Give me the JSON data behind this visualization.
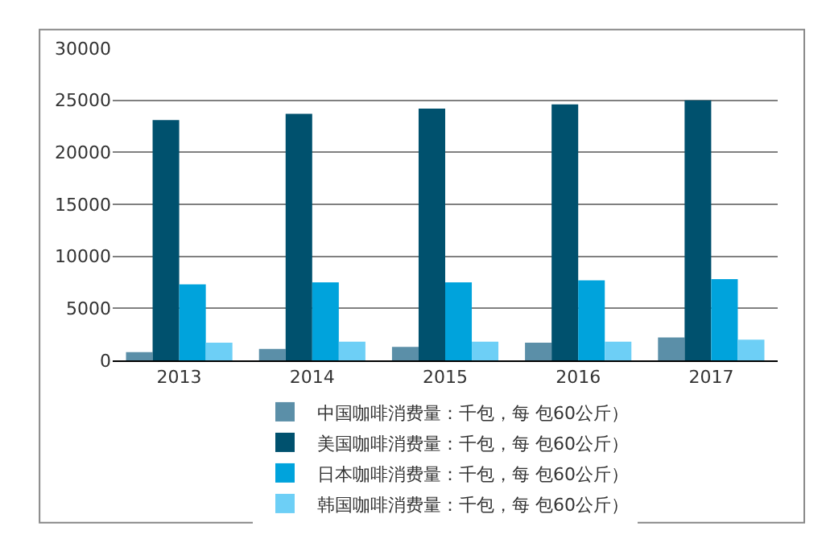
{
  "chart_data": {
    "type": "bar",
    "categories": [
      "2013",
      "2014",
      "2015",
      "2016",
      "2017"
    ],
    "series": [
      {
        "name": "中国咖啡消费量：千包，每 包60公斤）",
        "color": "#5b8fa8",
        "values": [
          800,
          1100,
          1300,
          1700,
          2200
        ]
      },
      {
        "name": "美国咖啡消费量：千包，每 包60公斤）",
        "color": "#00516e",
        "values": [
          23100,
          23700,
          24200,
          24600,
          25000
        ]
      },
      {
        "name": "日本咖啡消费量：千包，每 包60公斤）",
        "color": "#00a3dc",
        "values": [
          7300,
          7500,
          7500,
          7700,
          7800
        ]
      },
      {
        "name": "韩国咖啡消费量：千包，每 包60公斤）",
        "color": "#6dcff6",
        "values": [
          1700,
          1800,
          1800,
          1800,
          2000
        ]
      }
    ],
    "ylim": [
      0,
      30000
    ],
    "yticks": [
      0,
      5000,
      10000,
      15000,
      20000,
      25000,
      30000
    ],
    "grid": "y",
    "legend": "bottom"
  }
}
